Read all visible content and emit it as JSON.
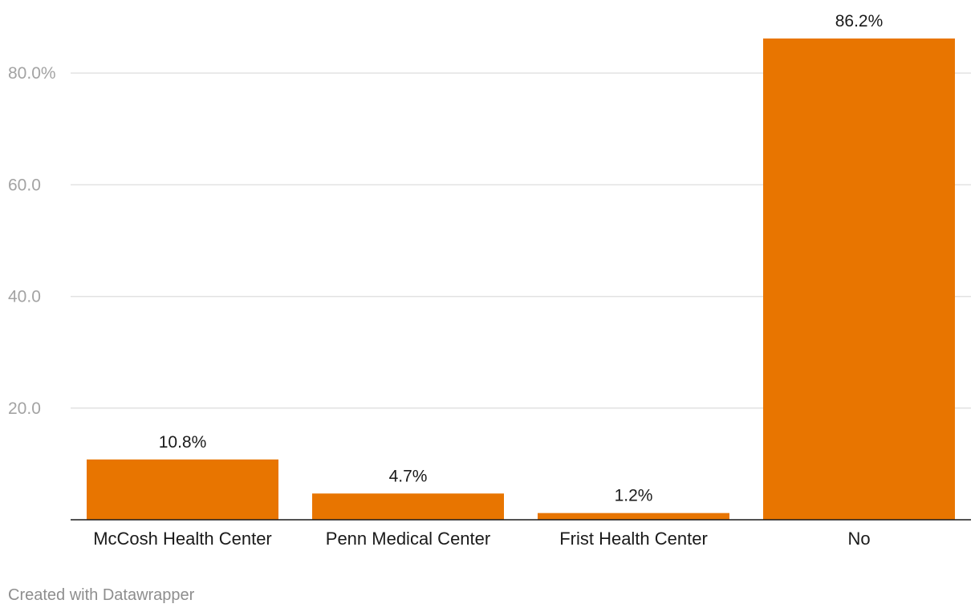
{
  "chart_data": {
    "type": "bar",
    "categories": [
      "McCosh Health Center",
      "Penn Medical Center",
      "Frist Health Center",
      "No"
    ],
    "values": [
      10.8,
      4.7,
      1.2,
      86.2
    ],
    "value_labels": [
      "10.8%",
      "4.7%",
      "1.2%",
      "86.2%"
    ],
    "yticks": [
      20,
      40,
      60,
      80
    ],
    "ytick_labels": [
      "20.0",
      "40.0",
      "60.0",
      "80.0%"
    ],
    "ylim": [
      0,
      86.2
    ],
    "grid": true,
    "bar_color": "#e87500",
    "title": "",
    "xlabel": "",
    "ylabel": ""
  },
  "footer": {
    "credit": "Created with Datawrapper"
  }
}
